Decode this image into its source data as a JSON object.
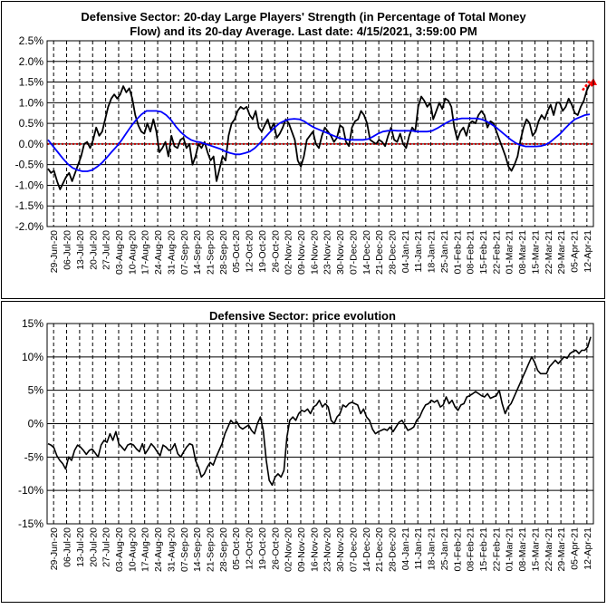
{
  "chart_data": [
    {
      "type": "line",
      "title_lines": [
        "Defensive Sector: 20-day Large Players' Strength (in Percentage of Total Money",
        "Flow) and its 20-day Average. Last date: 4/15/2021, 3:59:00 PM"
      ],
      "ylim": [
        -2.0,
        2.5
      ],
      "yticks": [
        "2.5%",
        "2.0%",
        "1.5%",
        "1.0%",
        "0.5%",
        "0.0%",
        "-0.5%",
        "-1.0%",
        "-1.5%",
        "-2.0%"
      ],
      "ytick_values": [
        2.5,
        2.0,
        1.5,
        1.0,
        0.5,
        0.0,
        -0.5,
        -1.0,
        -1.5,
        -2.0
      ],
      "xticks": [
        "29-Jun-20",
        "06-Jul-20",
        "13-Jul-20",
        "20-Jul-20",
        "27-Jul-20",
        "03-Aug-20",
        "10-Aug-20",
        "17-Aug-20",
        "24-Aug-20",
        "31-Aug-20",
        "07-Sep-20",
        "14-Sep-20",
        "21-Sep-20",
        "28-Sep-20",
        "05-Oct-20",
        "12-Oct-20",
        "19-Oct-20",
        "26-Oct-20",
        "02-Nov-20",
        "09-Nov-20",
        "16-Nov-20",
        "23-Nov-20",
        "30-Nov-20",
        "07-Dec-20",
        "14-Dec-20",
        "21-Dec-20",
        "28-Dec-20",
        "04-Jan-21",
        "11-Jan-21",
        "18-Jan-21",
        "25-Jan-21",
        "01-Feb-21",
        "08-Feb-21",
        "15-Feb-21",
        "22-Feb-21",
        "01-Mar-21",
        "08-Mar-21",
        "15-Mar-21",
        "22-Mar-21",
        "29-Mar-21",
        "05-Apr-21",
        "12-Apr-21"
      ],
      "colors": {
        "strength": "#000000",
        "average": "#0000ff",
        "zero_line": "#c00000",
        "projection": "#ff0000"
      },
      "series": [
        {
          "key": "strength",
          "values": [
            -0.6,
            -0.7,
            -0.65,
            -0.9,
            -1.1,
            -0.95,
            -0.8,
            -0.7,
            -0.9,
            -0.7,
            -0.5,
            -0.3,
            0.0,
            0.05,
            -0.1,
            0.1,
            0.4,
            0.2,
            0.3,
            0.6,
            0.9,
            1.1,
            1.2,
            1.1,
            1.2,
            1.4,
            1.25,
            1.35,
            1.1,
            0.7,
            0.45,
            0.3,
            0.25,
            0.5,
            0.3,
            0.6,
            0.3,
            -0.2,
            -0.1,
            0.05,
            -0.3,
            0.2,
            -0.05,
            -0.1,
            0.1,
            0.15,
            -0.1,
            0.0,
            -0.5,
            -0.3,
            0.0,
            -0.1,
            0.05,
            -0.2,
            -0.4,
            -0.3,
            -0.9,
            -0.6,
            -0.3,
            -0.4,
            0.2,
            0.5,
            0.6,
            0.8,
            0.9,
            0.85,
            0.9,
            0.7,
            0.6,
            0.8,
            0.4,
            0.3,
            0.45,
            0.6,
            0.35,
            0.5,
            0.15,
            0.25,
            0.4,
            0.6,
            0.5,
            0.3,
            0.1,
            -0.4,
            -0.55,
            -0.3,
            0.1,
            0.2,
            0.3,
            0.0,
            -0.1,
            0.2,
            0.4,
            0.3,
            0.2,
            0.05,
            0.15,
            0.45,
            0.4,
            0.05,
            -0.05,
            0.4,
            0.55,
            0.6,
            0.8,
            0.7,
            0.5,
            0.1,
            0.05,
            0.0,
            0.1,
            0.05,
            -0.05,
            0.2,
            0.4,
            0.1,
            0.05,
            0.25,
            0.0,
            -0.1,
            0.2,
            0.4,
            0.3,
            0.9,
            1.15,
            1.05,
            0.9,
            1.0,
            0.6,
            0.8,
            1.0,
            0.85,
            1.1,
            1.05,
            0.9,
            0.4,
            0.1,
            0.3,
            0.4,
            0.2,
            0.5,
            0.55,
            0.5,
            0.7,
            0.8,
            0.7,
            0.4,
            0.55,
            0.5,
            0.3,
            0.1,
            -0.1,
            -0.3,
            -0.55,
            -0.65,
            -0.5,
            -0.3,
            0.1,
            0.4,
            0.6,
            0.5,
            0.2,
            0.3,
            0.55,
            0.7,
            0.6,
            0.8,
            0.95,
            0.7,
            1.0,
            1.0,
            0.8,
            0.9,
            1.1,
            0.95,
            0.75,
            0.7,
            0.9,
            1.05,
            1.3,
            1.45
          ]
        },
        {
          "key": "average",
          "values": [
            0.1,
            -0.05,
            -0.2,
            -0.35,
            -0.48,
            -0.58,
            -0.63,
            -0.66,
            -0.66,
            -0.63,
            -0.55,
            -0.45,
            -0.32,
            -0.18,
            -0.05,
            0.1,
            0.28,
            0.45,
            0.6,
            0.72,
            0.8,
            0.8,
            0.8,
            0.78,
            0.7,
            0.58,
            0.42,
            0.28,
            0.18,
            0.1,
            0.06,
            0.04,
            0.0,
            -0.04,
            -0.08,
            -0.12,
            -0.18,
            -0.22,
            -0.25,
            -0.25,
            -0.22,
            -0.18,
            -0.1,
            0.02,
            0.15,
            0.28,
            0.4,
            0.5,
            0.56,
            0.6,
            0.61,
            0.6,
            0.55,
            0.47,
            0.4,
            0.35,
            0.3,
            0.25,
            0.2,
            0.15,
            0.12,
            0.1,
            0.1,
            0.1,
            0.1,
            0.12,
            0.18,
            0.25,
            0.3,
            0.32,
            0.33,
            0.32,
            0.32,
            0.32,
            0.32,
            0.3,
            0.3,
            0.3,
            0.32,
            0.38,
            0.45,
            0.52,
            0.58,
            0.6,
            0.62,
            0.62,
            0.62,
            0.62,
            0.6,
            0.55,
            0.48,
            0.4,
            0.3,
            0.2,
            0.1,
            0.02,
            -0.03,
            -0.06,
            -0.06,
            -0.06,
            -0.05,
            -0.02,
            0.05,
            0.15,
            0.25,
            0.38,
            0.5,
            0.6,
            0.65,
            0.7,
            0.72
          ]
        }
      ],
      "projection": [
        [
          1.45,
          1.3,
          1.6
        ]
      ]
    },
    {
      "type": "line",
      "title": "Defensive Sector: price evolution",
      "ylim": [
        -15,
        15
      ],
      "yticks": [
        "15%",
        "10%",
        "5%",
        "0%",
        "-5%",
        "-10%",
        "-15%"
      ],
      "ytick_values": [
        15,
        10,
        5,
        0,
        -5,
        -10,
        -15
      ],
      "xticks": [
        "29-Jun-20",
        "06-Jul-20",
        "13-Jul-20",
        "20-Jul-20",
        "27-Jul-20",
        "03-Aug-20",
        "10-Aug-20",
        "17-Aug-20",
        "24-Aug-20",
        "31-Aug-20",
        "07-Sep-20",
        "14-Sep-20",
        "21-Sep-20",
        "28-Sep-20",
        "05-Oct-20",
        "12-Oct-20",
        "19-Oct-20",
        "26-Oct-20",
        "02-Nov-20",
        "09-Nov-20",
        "16-Nov-20",
        "23-Nov-20",
        "30-Nov-20",
        "07-Dec-20",
        "14-Dec-20",
        "21-Dec-20",
        "28-Dec-20",
        "04-Jan-21",
        "11-Jan-21",
        "18-Jan-21",
        "25-Jan-21",
        "01-Feb-21",
        "08-Feb-21",
        "15-Feb-21",
        "22-Feb-21",
        "01-Mar-21",
        "08-Mar-21",
        "15-Mar-21",
        "22-Mar-21",
        "29-Mar-21",
        "05-Apr-21",
        "12-Apr-21"
      ],
      "colors": {
        "price": "#000000"
      },
      "series": [
        {
          "key": "price",
          "values": [
            -3.0,
            -3.2,
            -3.6,
            -4.8,
            -5.5,
            -6.0,
            -6.8,
            -5.0,
            -5.5,
            -4.0,
            -3.2,
            -3.5,
            -4.0,
            -4.6,
            -4.0,
            -3.8,
            -4.4,
            -5.0,
            -3.2,
            -2.5,
            -2.8,
            -1.5,
            -2.5,
            -1.2,
            -3.0,
            -3.5,
            -4.0,
            -3.2,
            -3.0,
            -3.2,
            -3.8,
            -4.2,
            -3.0,
            -4.5,
            -3.8,
            -3.0,
            -3.5,
            -4.2,
            -4.8,
            -3.2,
            -3.5,
            -4.0,
            -3.8,
            -3.0,
            -4.5,
            -5.0,
            -4.2,
            -3.5,
            -3.0,
            -3.2,
            -5.5,
            -6.5,
            -8.0,
            -7.5,
            -6.5,
            -5.8,
            -6.2,
            -5.0,
            -4.0,
            -3.0,
            -1.5,
            -0.5,
            0.5,
            0.0,
            0.3,
            -0.5,
            -0.8,
            -0.5,
            -0.2,
            -1.0,
            -1.5,
            0.0,
            1.0,
            -1.0,
            -5.5,
            -8.5,
            -9.2,
            -8.0,
            -7.5,
            -8.0,
            -7.0,
            -2.0,
            0.5,
            1.0,
            0.5,
            1.5,
            2.0,
            1.8,
            2.2,
            1.5,
            2.5,
            2.8,
            3.5,
            2.5,
            3.0,
            2.5,
            0.5,
            0.0,
            1.0,
            1.5,
            2.8,
            2.5,
            3.0,
            3.2,
            3.0,
            2.8,
            1.5,
            2.2,
            1.0,
            0.5,
            -0.8,
            -1.5,
            -1.2,
            -1.0,
            -0.8,
            -1.0,
            -0.5,
            -1.2,
            -0.5,
            0.2,
            0.5,
            -0.2,
            -1.0,
            -0.8,
            -0.5,
            0.5,
            1.0,
            2.0,
            2.8,
            3.0,
            3.5,
            3.2,
            3.5,
            2.5,
            2.8,
            4.0,
            3.0,
            3.5,
            2.5,
            2.0,
            2.8,
            3.0,
            4.0,
            4.2,
            4.5,
            4.8,
            4.5,
            4.2,
            4.0,
            4.5,
            3.8,
            4.0,
            4.2,
            5.0,
            3.0,
            1.5,
            2.5,
            3.0,
            4.0,
            5.0,
            6.0,
            7.0,
            8.0,
            9.0,
            10.0,
            9.2,
            8.0,
            7.5,
            7.5,
            7.5,
            8.5,
            9.0,
            9.5,
            9.0,
            9.5,
            10.0,
            9.8,
            10.5,
            10.8,
            11.0,
            10.5,
            11.0,
            11.0,
            11.5,
            13.0
          ]
        }
      ]
    }
  ]
}
